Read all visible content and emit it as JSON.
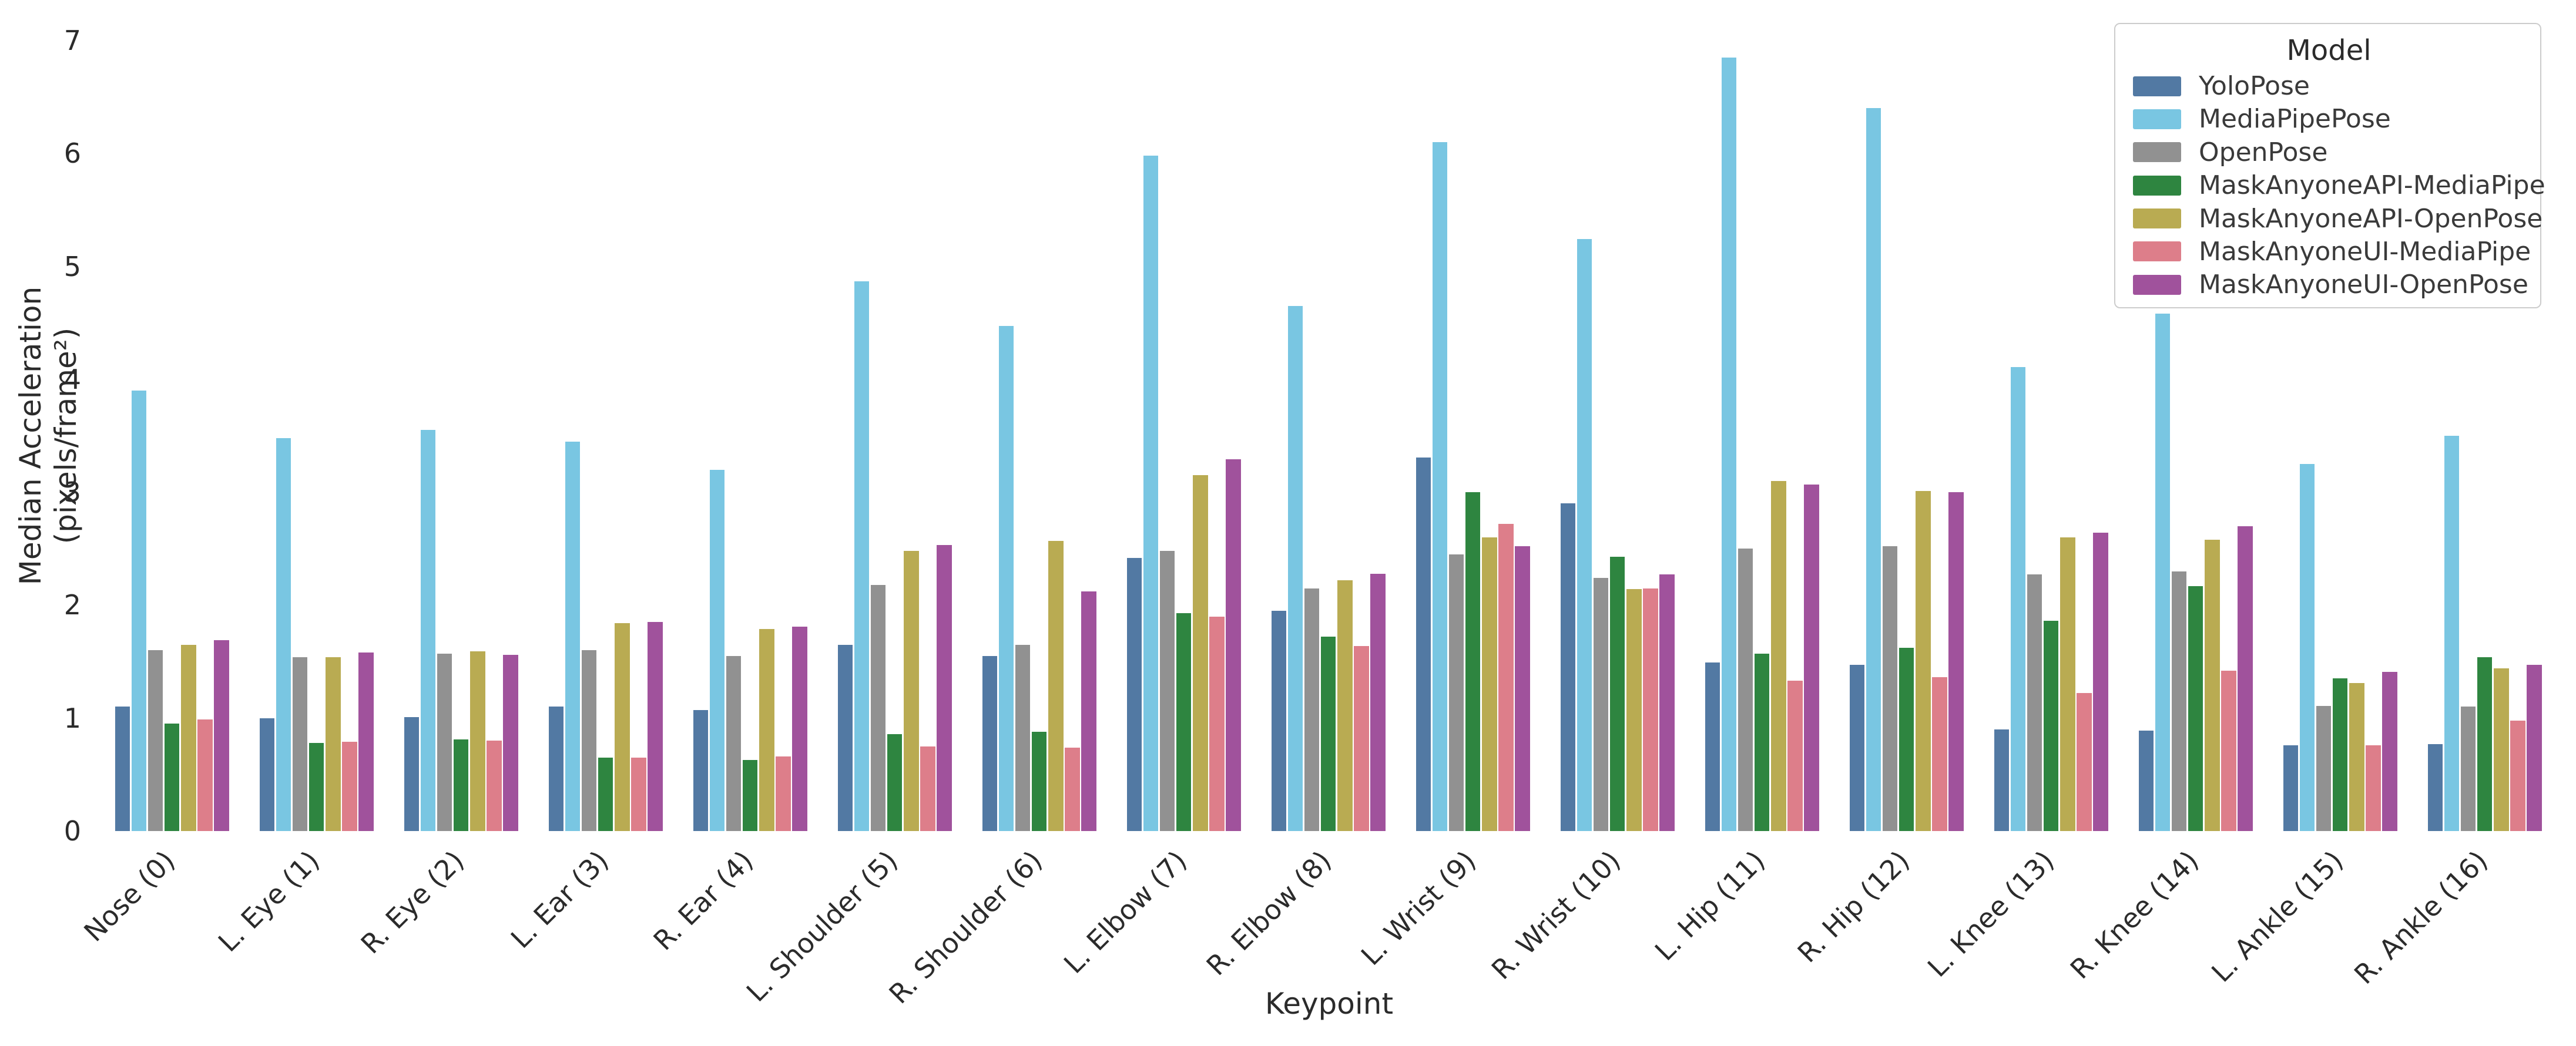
{
  "chart_data": {
    "type": "bar",
    "title": "",
    "xlabel": "Keypoint",
    "ylabel": "Median Acceleration (pixels/frame²)",
    "ylim": [
      0,
      7
    ],
    "yticks": [
      0,
      1,
      2,
      3,
      4,
      5,
      6,
      7
    ],
    "grid": false,
    "legend": {
      "title": "Model",
      "position": "upper right"
    },
    "categories": [
      "Nose (0)",
      "L. Eye (1)",
      "R. Eye (2)",
      "L. Ear (3)",
      "R. Ear (4)",
      "L. Shoulder (5)",
      "R. Shoulder (6)",
      "L. Elbow (7)",
      "R. Elbow (8)",
      "L. Wrist (9)",
      "R. Wrist (10)",
      "L. Hip (11)",
      "R. Hip (12)",
      "L. Knee (13)",
      "R. Knee (14)",
      "L. Ankle (15)",
      "R. Ankle (16)"
    ],
    "series": [
      {
        "name": "YoloPose",
        "color": "#5279a3",
        "values": [
          1.1,
          1.0,
          1.01,
          1.1,
          1.07,
          1.65,
          1.55,
          2.42,
          1.95,
          3.31,
          2.9,
          1.49,
          1.47,
          0.9,
          0.89,
          0.76,
          0.77
        ]
      },
      {
        "name": "MediaPipePose",
        "color": "#79c6e2",
        "values": [
          3.9,
          3.48,
          3.55,
          3.45,
          3.2,
          4.87,
          4.47,
          5.98,
          4.65,
          6.1,
          5.24,
          6.85,
          6.4,
          4.11,
          4.58,
          3.25,
          3.5
        ]
      },
      {
        "name": "OpenPose",
        "color": "#919191",
        "values": [
          1.6,
          1.54,
          1.57,
          1.6,
          1.55,
          2.18,
          1.65,
          2.48,
          2.15,
          2.45,
          2.24,
          2.5,
          2.52,
          2.27,
          2.3,
          1.11,
          1.1
        ]
      },
      {
        "name": "MaskAnyoneAPI-MediaPipe",
        "color": "#2e8540",
        "values": [
          0.95,
          0.78,
          0.81,
          0.65,
          0.63,
          0.86,
          0.88,
          1.93,
          1.72,
          3.0,
          2.43,
          1.57,
          1.62,
          1.86,
          2.17,
          1.35,
          1.54
        ]
      },
      {
        "name": "MaskAnyoneAPI-OpenPose",
        "color": "#b9ab52",
        "values": [
          1.65,
          1.54,
          1.59,
          1.84,
          1.79,
          2.48,
          2.57,
          3.15,
          2.22,
          2.6,
          2.14,
          3.1,
          3.01,
          2.6,
          2.58,
          1.31,
          1.44
        ]
      },
      {
        "name": "MaskAnyoneUI-MediaPipe",
        "color": "#dd7e8a",
        "values": [
          0.99,
          0.79,
          0.8,
          0.65,
          0.66,
          0.75,
          0.74,
          1.9,
          1.64,
          2.72,
          2.15,
          1.33,
          1.36,
          1.22,
          1.42,
          0.76,
          0.98
        ]
      },
      {
        "name": "MaskAnyoneUI-OpenPose",
        "color": "#a0529c",
        "values": [
          1.69,
          1.58,
          1.56,
          1.85,
          1.81,
          2.53,
          2.12,
          3.29,
          2.28,
          2.52,
          2.27,
          3.07,
          3.0,
          2.64,
          2.7,
          1.41,
          1.47
        ]
      }
    ]
  }
}
